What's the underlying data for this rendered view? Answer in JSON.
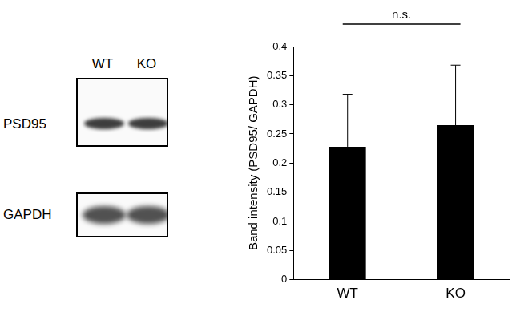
{
  "blot": {
    "lanes": [
      "WT",
      "KO"
    ],
    "rows": [
      "PSD95",
      "GAPDH"
    ]
  },
  "chart_data": {
    "type": "bar",
    "categories": [
      "WT",
      "KO"
    ],
    "values": [
      0.228,
      0.265
    ],
    "errors": [
      0.09,
      0.103
    ],
    "color": "#000000",
    "y_label": "Band intensity (PSD95/ GAPDH)",
    "annotation": "n.s.",
    "ylim": [
      0,
      0.4
    ],
    "yticks": [
      0,
      0.05,
      0.1,
      0.15,
      0.2,
      0.25,
      0.3,
      0.35,
      0.4
    ],
    "grid": false
  }
}
